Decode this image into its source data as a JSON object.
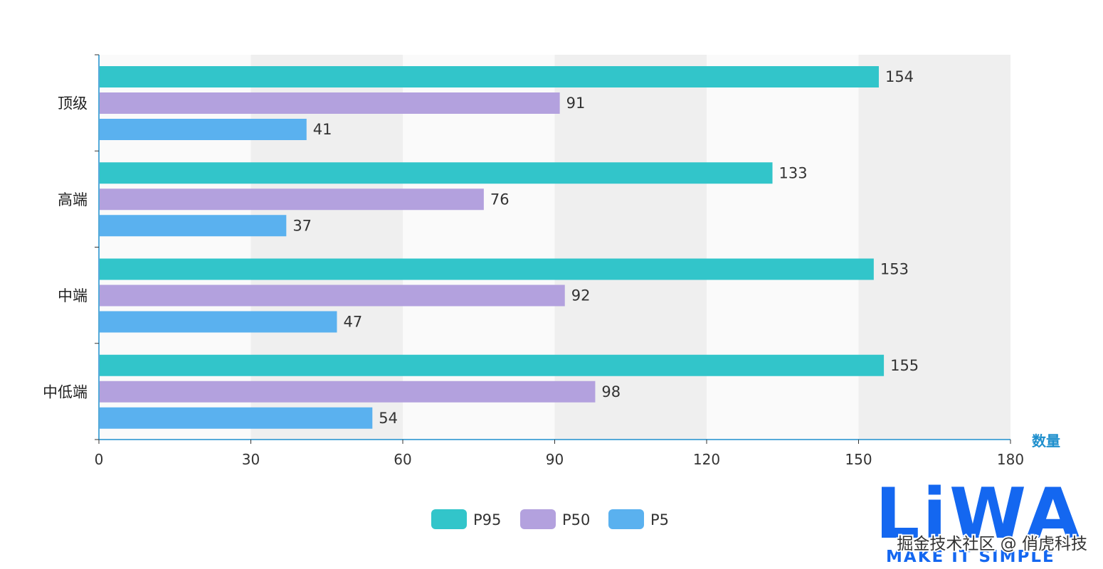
{
  "chart_data": {
    "type": "bar",
    "orientation": "horizontal",
    "categories": [
      "顶级",
      "高端",
      "中端",
      "中低端"
    ],
    "series": [
      {
        "name": "P95",
        "color": "#32C5CA",
        "values": [
          154,
          133,
          153,
          155
        ]
      },
      {
        "name": "P50",
        "color": "#B3A1DE",
        "values": [
          91,
          76,
          92,
          98
        ]
      },
      {
        "name": "P5",
        "color": "#5AB1EF",
        "values": [
          41,
          37,
          47,
          54
        ]
      }
    ],
    "xlabel": "数量",
    "xlim": [
      0,
      180
    ],
    "xticks": [
      0,
      30,
      60,
      90,
      120,
      150,
      180
    ],
    "split_area": true,
    "legend_position": "bottom-center",
    "axis_color": "#1E8FCD",
    "grid_colors": [
      "#FAFAFA",
      "#EFEFEF"
    ]
  },
  "watermark": {
    "logo_text": "LiWA",
    "logo_tagline": "MAKE IT SIMPLE",
    "logo_color": "#1467F0",
    "credit": "掘金技术社区 @ 俏虎科技"
  }
}
